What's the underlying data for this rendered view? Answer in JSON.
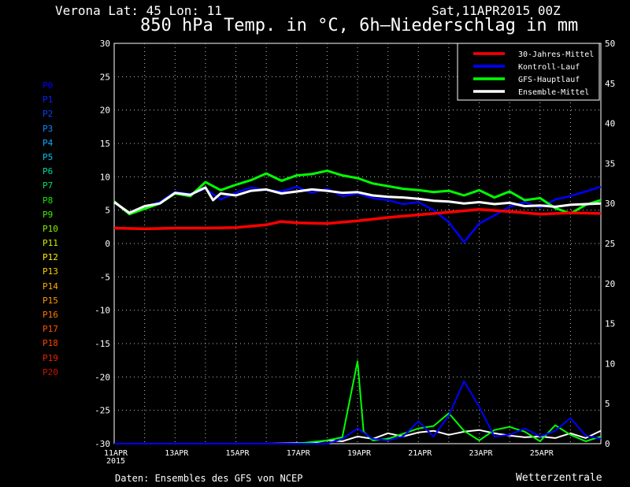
{
  "header": {
    "location": "Verona   Lat: 45 Lon: 11",
    "run": "Sat,11APR2015 00Z",
    "title": "850 hPa Temp. in °C, 6h–Niederschlag in mm"
  },
  "footer": {
    "source": "Daten: Ensembles des GFS von NCEP",
    "brand": "Wetterzentrale"
  },
  "chart_data": {
    "type": "line",
    "title": "850 hPa Temp. in °C, 6h–Niederschlag in mm",
    "x_labels": [
      "11APR",
      "13APR",
      "15APR",
      "17APR",
      "19APR",
      "21APR",
      "23APR",
      "25APR"
    ],
    "x_year_label": "2015",
    "x_range_days": [
      11,
      27
    ],
    "y_left": {
      "range": [
        -30,
        30
      ],
      "ticks": [
        "30",
        "25",
        "20",
        "15",
        "10",
        "5",
        "0",
        "-5",
        "-10",
        "-15",
        "-20",
        "-25",
        "-30"
      ],
      "unit": "°C"
    },
    "y_right": {
      "range": [
        0,
        50
      ],
      "ticks": [
        "50",
        "45",
        "40",
        "35",
        "30",
        "25",
        "20",
        "15",
        "10",
        "5",
        "0"
      ],
      "unit": "mm"
    },
    "grid": "dotted",
    "legend_position": "top-right",
    "legend": [
      {
        "name": "30-Jahres-Mittel",
        "color": "#ff0000"
      },
      {
        "name": "Kontroll-Lauf",
        "color": "#0000ff"
      },
      {
        "name": "GFS-Hauptlauf",
        "color": "#00ff00"
      },
      {
        "name": "Ensemble-Mittel",
        "color": "#ffffff"
      }
    ],
    "temperature_series": [
      {
        "name": "30-Jahres-Mittel",
        "color": "#ff0000",
        "points": [
          [
            11,
            2.3
          ],
          [
            12,
            2.2
          ],
          [
            13,
            2.3
          ],
          [
            14,
            2.3
          ],
          [
            15,
            2.4
          ],
          [
            16,
            2.8
          ],
          [
            16.5,
            3.3
          ],
          [
            17,
            3.1
          ],
          [
            18,
            3.0
          ],
          [
            19,
            3.4
          ],
          [
            20,
            3.9
          ],
          [
            21,
            4.3
          ],
          [
            22,
            4.7
          ],
          [
            23,
            5.1
          ],
          [
            24,
            4.8
          ],
          [
            25,
            4.4
          ],
          [
            26,
            4.6
          ],
          [
            27,
            4.5
          ]
        ]
      },
      {
        "name": "Ensemble-Mittel",
        "color": "#ffffff",
        "points": [
          [
            11,
            6.2
          ],
          [
            11.5,
            4.6
          ],
          [
            12,
            5.6
          ],
          [
            12.5,
            6.0
          ],
          [
            13,
            7.6
          ],
          [
            13.5,
            7.3
          ],
          [
            14,
            8.4
          ],
          [
            14.25,
            6.5
          ],
          [
            14.5,
            7.5
          ],
          [
            15,
            7.2
          ],
          [
            15.5,
            7.9
          ],
          [
            16,
            8.1
          ],
          [
            16.5,
            7.5
          ],
          [
            17,
            7.8
          ],
          [
            17.5,
            8.1
          ],
          [
            18,
            7.9
          ],
          [
            18.5,
            7.6
          ],
          [
            19,
            7.7
          ],
          [
            19.5,
            7.2
          ],
          [
            20,
            7.0
          ],
          [
            20.5,
            6.9
          ],
          [
            21,
            6.7
          ],
          [
            21.5,
            6.4
          ],
          [
            22,
            6.3
          ],
          [
            22.5,
            6.0
          ],
          [
            23,
            6.2
          ],
          [
            23.5,
            5.9
          ],
          [
            24,
            6.1
          ],
          [
            24.5,
            5.6
          ],
          [
            25,
            5.7
          ],
          [
            25.5,
            5.5
          ],
          [
            26,
            5.8
          ],
          [
            26.5,
            5.9
          ],
          [
            27,
            6.0
          ]
        ]
      },
      {
        "name": "GFS-Hauptlauf",
        "color": "#00ff00",
        "points": [
          [
            11,
            6.3
          ],
          [
            11.5,
            4.4
          ],
          [
            12,
            5.2
          ],
          [
            12.5,
            6.0
          ],
          [
            13,
            7.5
          ],
          [
            13.5,
            7.1
          ],
          [
            14,
            9.2
          ],
          [
            14.5,
            8.0
          ],
          [
            15,
            8.8
          ],
          [
            15.5,
            9.5
          ],
          [
            16,
            10.5
          ],
          [
            16.5,
            9.4
          ],
          [
            17,
            10.2
          ],
          [
            17.5,
            10.4
          ],
          [
            18,
            10.9
          ],
          [
            18.5,
            10.2
          ],
          [
            19,
            9.8
          ],
          [
            19.5,
            9.0
          ],
          [
            20,
            8.6
          ],
          [
            20.5,
            8.2
          ],
          [
            21,
            8.0
          ],
          [
            21.5,
            7.7
          ],
          [
            22,
            7.9
          ],
          [
            22.5,
            7.2
          ],
          [
            23,
            8.0
          ],
          [
            23.5,
            6.9
          ],
          [
            24,
            7.8
          ],
          [
            24.5,
            6.5
          ],
          [
            25,
            6.8
          ],
          [
            25.5,
            5.3
          ],
          [
            26,
            4.5
          ],
          [
            26.5,
            5.8
          ],
          [
            27,
            6.5
          ]
        ]
      },
      {
        "name": "Kontroll-Lauf",
        "color": "#0000ff",
        "points": [
          [
            11,
            6.2
          ],
          [
            11.5,
            4.5
          ],
          [
            12,
            5.5
          ],
          [
            12.5,
            6.2
          ],
          [
            13,
            7.7
          ],
          [
            13.5,
            7.4
          ],
          [
            14,
            8.2
          ],
          [
            14.5,
            6.6
          ],
          [
            15,
            7.6
          ],
          [
            15.5,
            8.4
          ],
          [
            16,
            8.0
          ],
          [
            16.5,
            7.8
          ],
          [
            17,
            8.5
          ],
          [
            17.5,
            7.6
          ],
          [
            18,
            8.2
          ],
          [
            18.5,
            7.1
          ],
          [
            19,
            7.5
          ],
          [
            19.5,
            6.8
          ],
          [
            20,
            6.5
          ],
          [
            20.5,
            5.9
          ],
          [
            21,
            6.2
          ],
          [
            21.5,
            5.0
          ],
          [
            22,
            3.2
          ],
          [
            22.5,
            0.2
          ],
          [
            23,
            3.0
          ],
          [
            23.5,
            4.2
          ],
          [
            24,
            5.5
          ],
          [
            24.5,
            6.2
          ],
          [
            25,
            5.4
          ],
          [
            25.5,
            6.6
          ],
          [
            26,
            7.1
          ],
          [
            26.5,
            7.8
          ],
          [
            27,
            8.5
          ]
        ]
      }
    ],
    "precipitation_series": [
      {
        "name": "Ensemble-Mittel",
        "color": "#ffffff",
        "points": [
          [
            11,
            0
          ],
          [
            16,
            0
          ],
          [
            17.5,
            0.1
          ],
          [
            18,
            0.4
          ],
          [
            18.5,
            0.3
          ],
          [
            19,
            0.9
          ],
          [
            19.5,
            0.6
          ],
          [
            20,
            1.3
          ],
          [
            20.5,
            0.9
          ],
          [
            21,
            1.4
          ],
          [
            21.5,
            1.6
          ],
          [
            22,
            1.1
          ],
          [
            22.5,
            1.5
          ],
          [
            23,
            1.7
          ],
          [
            23.5,
            1.3
          ],
          [
            24,
            1.0
          ],
          [
            24.5,
            0.8
          ],
          [
            25,
            0.9
          ],
          [
            25.5,
            0.7
          ],
          [
            26,
            1.3
          ],
          [
            26.5,
            0.7
          ],
          [
            27,
            1.6
          ]
        ]
      },
      {
        "name": "GFS-Hauptlauf",
        "color": "#00ff00",
        "points": [
          [
            11,
            0
          ],
          [
            17,
            0
          ],
          [
            18,
            0.4
          ],
          [
            18.5,
            0.8
          ],
          [
            19,
            10.3
          ],
          [
            19.2,
            1.5
          ],
          [
            19.5,
            0.4
          ],
          [
            20,
            0.6
          ],
          [
            21,
            1.9
          ],
          [
            21.5,
            2.2
          ],
          [
            22,
            3.8
          ],
          [
            22.5,
            1.6
          ],
          [
            23,
            0.4
          ],
          [
            23.5,
            1.7
          ],
          [
            24,
            2.1
          ],
          [
            24.5,
            1.5
          ],
          [
            25,
            0.3
          ],
          [
            25.5,
            2.3
          ],
          [
            26,
            1.1
          ],
          [
            26.5,
            0.3
          ],
          [
            27,
            0.9
          ]
        ]
      },
      {
        "name": "Kontroll-Lauf",
        "color": "#0000ff",
        "points": [
          [
            11,
            0
          ],
          [
            18,
            0
          ],
          [
            18.5,
            0.6
          ],
          [
            19,
            1.9
          ],
          [
            19.5,
            0.6
          ],
          [
            20,
            0.4
          ],
          [
            20.5,
            0.9
          ],
          [
            21,
            2.8
          ],
          [
            21.5,
            0.9
          ],
          [
            22,
            3.5
          ],
          [
            22.5,
            7.8
          ],
          [
            23,
            4.6
          ],
          [
            23.5,
            0.9
          ],
          [
            24,
            1.1
          ],
          [
            24.5,
            1.9
          ],
          [
            25,
            0.9
          ],
          [
            25.5,
            1.6
          ],
          [
            26,
            3.2
          ],
          [
            26.5,
            1.0
          ],
          [
            27,
            0.6
          ]
        ]
      }
    ],
    "ensemble_members": [
      {
        "name": "P0",
        "color": "#0000ff"
      },
      {
        "name": "P1",
        "color": "#0022ff"
      },
      {
        "name": "P2",
        "color": "#0044ff"
      },
      {
        "name": "P3",
        "color": "#1188ff"
      },
      {
        "name": "P4",
        "color": "#11aaff"
      },
      {
        "name": "P5",
        "color": "#00c8e8"
      },
      {
        "name": "P6",
        "color": "#00d8a0"
      },
      {
        "name": "P7",
        "color": "#00e060"
      },
      {
        "name": "P8",
        "color": "#11ee00"
      },
      {
        "name": "P9",
        "color": "#44ee00"
      },
      {
        "name": "P10",
        "color": "#88ee00"
      },
      {
        "name": "P11",
        "color": "#ccee00"
      },
      {
        "name": "P12",
        "color": "#ffee00"
      },
      {
        "name": "P13",
        "color": "#ffcc00"
      },
      {
        "name": "P14",
        "color": "#ffaa00"
      },
      {
        "name": "P15",
        "color": "#ff9900"
      },
      {
        "name": "P16",
        "color": "#ff7700"
      },
      {
        "name": "P17",
        "color": "#ff5500"
      },
      {
        "name": "P18",
        "color": "#ff4400"
      },
      {
        "name": "P19",
        "color": "#ee2200"
      },
      {
        "name": "P20",
        "color": "#cc1100"
      }
    ]
  }
}
